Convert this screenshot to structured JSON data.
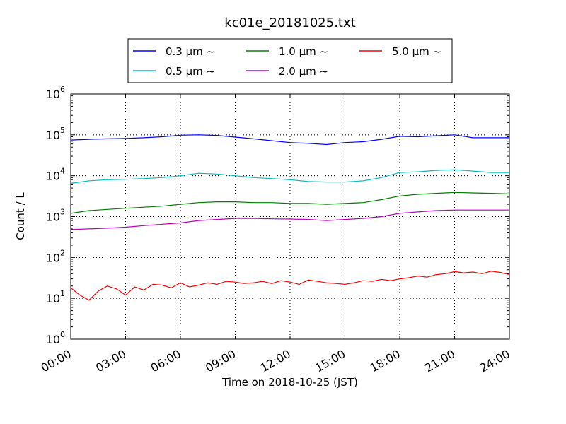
{
  "chart_data": {
    "type": "line",
    "title": "kc01e_20181025.txt",
    "xlabel": "Time on 2018-10-25 (JST)",
    "ylabel": "Count / L",
    "y_scale": "log",
    "xlim": [
      "00:00",
      "24:00"
    ],
    "ylim": [
      1,
      1000000
    ],
    "grid": true,
    "legend_placement": "top-center, above plot",
    "x_tick_labels": [
      "00:00",
      "03:00",
      "06:00",
      "09:00",
      "12:00",
      "15:00",
      "18:00",
      "21:00",
      "24:00"
    ],
    "y_tick_labels": [
      {
        "base": "10",
        "exp": "0"
      },
      {
        "base": "10",
        "exp": "1"
      },
      {
        "base": "10",
        "exp": "2"
      },
      {
        "base": "10",
        "exp": "3"
      },
      {
        "base": "10",
        "exp": "4"
      },
      {
        "base": "10",
        "exp": "5"
      },
      {
        "base": "10",
        "exp": "6"
      }
    ],
    "series": [
      {
        "name": "0.3 μm ~",
        "color": "#0000ff",
        "x": [
          "00:00",
          "01:00",
          "02:00",
          "03:00",
          "04:00",
          "05:00",
          "06:00",
          "07:00",
          "08:00",
          "09:00",
          "10:00",
          "11:00",
          "12:00",
          "13:00",
          "14:00",
          "15:00",
          "16:00",
          "17:00",
          "18:00",
          "19:00",
          "20:00",
          "21:00",
          "22:00",
          "23:00",
          "24:00"
        ],
        "values": [
          75000,
          78000,
          80000,
          82000,
          85000,
          90000,
          98000,
          100000,
          97000,
          88000,
          80000,
          72000,
          65000,
          62000,
          58000,
          65000,
          68000,
          78000,
          92000,
          90000,
          95000,
          100000,
          85000,
          85000,
          85000
        ]
      },
      {
        "name": "0.5 μm ~",
        "color": "#00bfbf",
        "x": [
          "00:00",
          "01:00",
          "02:00",
          "03:00",
          "04:00",
          "05:00",
          "06:00",
          "07:00",
          "08:00",
          "09:00",
          "10:00",
          "11:00",
          "12:00",
          "13:00",
          "14:00",
          "15:00",
          "16:00",
          "17:00",
          "18:00",
          "19:00",
          "20:00",
          "21:00",
          "22:00",
          "23:00",
          "24:00"
        ],
        "values": [
          6500,
          7500,
          8000,
          8200,
          8500,
          9000,
          10000,
          11500,
          11000,
          10000,
          9000,
          8500,
          8000,
          7200,
          7000,
          7000,
          7500,
          9000,
          12000,
          12500,
          13500,
          14000,
          13000,
          12000,
          12000
        ]
      },
      {
        "name": "1.0 μm ~",
        "color": "#008000",
        "x": [
          "00:00",
          "01:00",
          "02:00",
          "03:00",
          "04:00",
          "05:00",
          "06:00",
          "07:00",
          "08:00",
          "09:00",
          "10:00",
          "11:00",
          "12:00",
          "13:00",
          "14:00",
          "15:00",
          "16:00",
          "17:00",
          "18:00",
          "19:00",
          "20:00",
          "21:00",
          "22:00",
          "23:00",
          "24:00"
        ],
        "values": [
          1200,
          1400,
          1500,
          1600,
          1700,
          1800,
          2000,
          2200,
          2300,
          2300,
          2200,
          2200,
          2100,
          2100,
          2000,
          2100,
          2200,
          2600,
          3200,
          3500,
          3700,
          3900,
          3800,
          3700,
          3600
        ]
      },
      {
        "name": "2.0 μm ~",
        "color": "#bf00bf",
        "x": [
          "00:00",
          "01:00",
          "02:00",
          "03:00",
          "04:00",
          "05:00",
          "06:00",
          "07:00",
          "08:00",
          "09:00",
          "10:00",
          "11:00",
          "12:00",
          "13:00",
          "14:00",
          "15:00",
          "16:00",
          "17:00",
          "18:00",
          "19:00",
          "20:00",
          "21:00",
          "22:00",
          "23:00",
          "24:00"
        ],
        "values": [
          480,
          500,
          520,
          550,
          600,
          650,
          700,
          800,
          850,
          900,
          900,
          880,
          870,
          850,
          800,
          850,
          900,
          1000,
          1200,
          1300,
          1400,
          1450,
          1450,
          1450,
          1450
        ]
      },
      {
        "name": "5.0 μm ~",
        "color": "#ff0000",
        "x": [
          "00:00",
          "00:30",
          "01:00",
          "01:30",
          "02:00",
          "02:30",
          "03:00",
          "03:30",
          "04:00",
          "04:30",
          "05:00",
          "05:30",
          "06:00",
          "06:30",
          "07:00",
          "07:30",
          "08:00",
          "08:30",
          "09:00",
          "09:30",
          "10:00",
          "10:30",
          "11:00",
          "11:30",
          "12:00",
          "12:30",
          "13:00",
          "13:30",
          "14:00",
          "14:30",
          "15:00",
          "15:30",
          "16:00",
          "16:30",
          "17:00",
          "17:30",
          "18:00",
          "18:30",
          "19:00",
          "19:30",
          "20:00",
          "20:30",
          "21:00",
          "21:30",
          "22:00",
          "22:30",
          "23:00",
          "23:30",
          "24:00"
        ],
        "values": [
          18,
          12,
          9,
          15,
          20,
          17,
          12,
          19,
          16,
          22,
          21,
          18,
          24,
          19,
          21,
          24,
          22,
          26,
          25,
          23,
          24,
          26,
          23,
          27,
          25,
          22,
          28,
          26,
          24,
          23,
          22,
          24,
          27,
          26,
          29,
          27,
          30,
          32,
          35,
          33,
          38,
          40,
          45,
          42,
          44,
          40,
          46,
          43,
          38
        ]
      }
    ]
  }
}
